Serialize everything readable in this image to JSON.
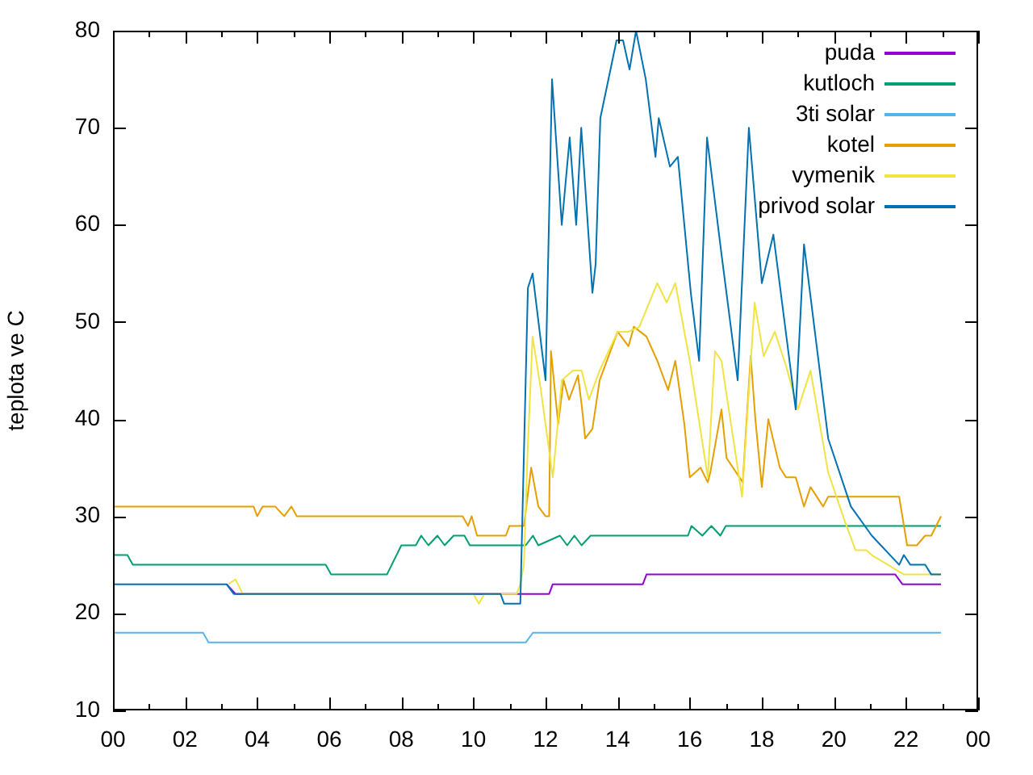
{
  "chart_data": {
    "type": "line",
    "ylabel": "teplota ve C",
    "legend": "top right",
    "grid": false,
    "marker": "none",
    "line_style": "solid",
    "xlim": [
      0,
      24
    ],
    "ylim": [
      10,
      80
    ],
    "xticks": [
      {
        "value": 0,
        "label": "00"
      },
      {
        "value": 1,
        "label": null
      },
      {
        "value": 2,
        "label": "02"
      },
      {
        "value": 3,
        "label": null
      },
      {
        "value": 4,
        "label": "04"
      },
      {
        "value": 5,
        "label": null
      },
      {
        "value": 6,
        "label": "06"
      },
      {
        "value": 7,
        "label": null
      },
      {
        "value": 8,
        "label": "08"
      },
      {
        "value": 9,
        "label": null
      },
      {
        "value": 10,
        "label": "10"
      },
      {
        "value": 11,
        "label": null
      },
      {
        "value": 12,
        "label": "12"
      },
      {
        "value": 13,
        "label": null
      },
      {
        "value": 14,
        "label": "14"
      },
      {
        "value": 15,
        "label": null
      },
      {
        "value": 16,
        "label": "16"
      },
      {
        "value": 17,
        "label": null
      },
      {
        "value": 18,
        "label": "18"
      },
      {
        "value": 19,
        "label": null
      },
      {
        "value": 20,
        "label": "20"
      },
      {
        "value": 21,
        "label": null
      },
      {
        "value": 22,
        "label": "22"
      },
      {
        "value": 23,
        "label": null
      },
      {
        "value": 24,
        "label": "00"
      }
    ],
    "yticks": [
      10,
      20,
      30,
      40,
      50,
      60,
      70,
      80
    ],
    "series": [
      {
        "name": "puda",
        "color": "#9400d3",
        "x": [
          3.15,
          3.4,
          12.1,
          12.2,
          14.7,
          14.8,
          21.7,
          21.9,
          22.97
        ],
        "values": [
          23,
          22,
          22,
          23,
          23,
          24,
          24,
          23,
          23
        ]
      },
      {
        "name": "kutloch",
        "color": "#009e73",
        "x": [
          0,
          0.4,
          0.55,
          5.9,
          6.05,
          7.6,
          8.0,
          8.4,
          8.55,
          8.75,
          9.0,
          9.2,
          9.45,
          9.75,
          9.9,
          11.45,
          11.65,
          11.8,
          12.4,
          12.6,
          12.8,
          13.0,
          13.25,
          15.95,
          16.05,
          16.35,
          16.6,
          16.85,
          17.0,
          22.97
        ],
        "values": [
          26,
          26,
          25,
          25,
          24,
          24,
          27,
          27,
          28,
          27,
          28,
          27,
          28,
          28,
          27,
          27,
          28,
          27,
          28,
          27,
          28,
          27,
          28,
          28,
          29,
          28,
          29,
          28,
          29,
          29
        ]
      },
      {
        "name": "3ti solar",
        "color": "#56b4e9",
        "x": [
          0,
          2.5,
          2.65,
          11.45,
          11.65,
          22.97
        ],
        "values": [
          18,
          18,
          17,
          17,
          18,
          18
        ]
      },
      {
        "name": "kotel",
        "color": "#e69f00",
        "x": [
          0,
          3.9,
          4.0,
          4.15,
          4.5,
          4.75,
          4.95,
          5.1,
          9.7,
          9.85,
          9.95,
          10.1,
          10.9,
          11.0,
          11.4,
          11.6,
          11.8,
          12.0,
          12.1,
          12.15,
          12.35,
          12.5,
          12.65,
          12.75,
          12.9,
          13.0,
          13.1,
          13.3,
          13.5,
          14.0,
          14.1,
          14.3,
          14.45,
          14.8,
          15.1,
          15.4,
          15.6,
          15.85,
          16.0,
          16.3,
          16.5,
          16.57,
          16.88,
          17.02,
          17.47,
          17.69,
          17.82,
          18.0,
          18.18,
          18.5,
          18.67,
          18.94,
          19.17,
          19.35,
          19.7,
          19.84,
          21.81,
          22.03,
          22.3,
          22.53,
          22.7,
          22.97
        ],
        "values": [
          31,
          31,
          30,
          31,
          31,
          30,
          31,
          30,
          30,
          29,
          30,
          28,
          28,
          29,
          29,
          35,
          31,
          30,
          30,
          47,
          39.5,
          44,
          42,
          43,
          44.5,
          41.5,
          38,
          39,
          44,
          49,
          48.5,
          47.5,
          49.5,
          48.5,
          46,
          43,
          46,
          39.5,
          34,
          35,
          33.5,
          34.5,
          41,
          36,
          33.5,
          46.5,
          40,
          33,
          40,
          35,
          34,
          34,
          31,
          33,
          31,
          32,
          32,
          27,
          27,
          28,
          28,
          30
        ]
      },
      {
        "name": "vymenik",
        "color": "#f0e442",
        "x": [
          3.2,
          3.4,
          3.6,
          10.0,
          10.15,
          10.3,
          11.2,
          11.3,
          11.4,
          11.5,
          11.64,
          11.87,
          12.2,
          12.45,
          12.76,
          13.0,
          13.2,
          13.5,
          14.0,
          14.3,
          14.6,
          15.1,
          15.36,
          15.6,
          16.0,
          16.5,
          16.7,
          16.88,
          17.45,
          17.8,
          18.05,
          18.36,
          18.67,
          19.0,
          19.35,
          19.84,
          20.3,
          20.6,
          20.9,
          21.05,
          21.5,
          21.94,
          22.97
        ],
        "values": [
          23,
          23.5,
          22,
          22,
          21,
          22,
          22,
          23,
          25,
          36.5,
          48.5,
          43,
          34,
          44,
          45,
          45,
          42,
          45,
          49,
          49,
          49.5,
          54,
          52,
          54,
          46,
          34,
          47,
          46,
          32,
          52,
          46.5,
          49,
          45.5,
          41,
          45,
          34.5,
          29.5,
          26.5,
          26.5,
          26,
          25,
          24,
          24
        ]
      },
      {
        "name": "privod solar",
        "color": "#0072b2",
        "x": [
          0,
          3.15,
          3.35,
          10.75,
          10.85,
          11.3,
          11.51,
          11.64,
          12.0,
          12.18,
          12.45,
          12.67,
          12.85,
          12.99,
          13.3,
          13.39,
          13.52,
          13.97,
          14.15,
          14.33,
          14.51,
          14.78,
          15.05,
          15.14,
          15.45,
          15.67,
          16.03,
          16.26,
          16.48,
          16.88,
          17.33,
          17.64,
          18.0,
          18.32,
          18.94,
          19.17,
          19.84,
          20.47,
          21.05,
          21.81,
          21.94,
          22.12,
          22.53,
          22.7,
          22.97
        ],
        "values": [
          23,
          23,
          22,
          22,
          21,
          21,
          53.5,
          55,
          44,
          75,
          60,
          69,
          60,
          70,
          53,
          56,
          71,
          79,
          79,
          76,
          80,
          75,
          67,
          71,
          66,
          67,
          53,
          46,
          69,
          57,
          44,
          70,
          54,
          59,
          41,
          58,
          38,
          31,
          28,
          25,
          26,
          25,
          25,
          24,
          24
        ]
      }
    ]
  }
}
